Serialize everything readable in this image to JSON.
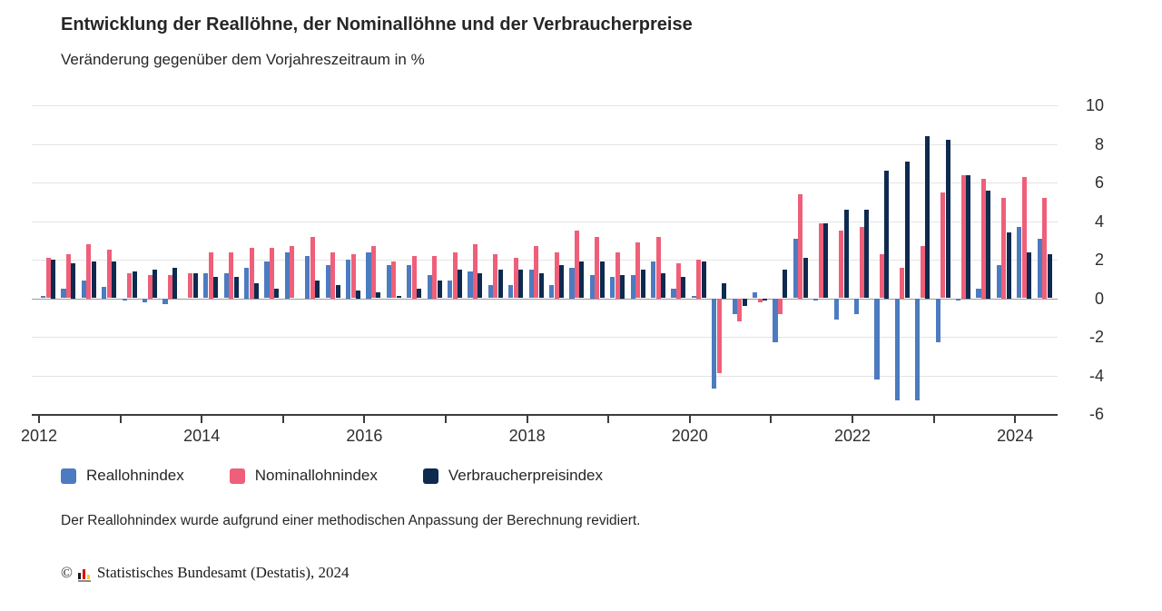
{
  "header": {
    "title": "Entwicklung der Reallöhne, der Nominallöhne und der Verbraucherpreise",
    "subtitle": "Veränderung gegenüber dem Vorjahreszeitraum in %"
  },
  "chart_data": {
    "type": "bar",
    "quarters": [
      "2012-Q1",
      "2012-Q2",
      "2012-Q3",
      "2012-Q4",
      "2013-Q1",
      "2013-Q2",
      "2013-Q3",
      "2013-Q4",
      "2014-Q1",
      "2014-Q2",
      "2014-Q3",
      "2014-Q4",
      "2015-Q1",
      "2015-Q2",
      "2015-Q3",
      "2015-Q4",
      "2016-Q1",
      "2016-Q2",
      "2016-Q3",
      "2016-Q4",
      "2017-Q1",
      "2017-Q2",
      "2017-Q3",
      "2017-Q4",
      "2018-Q1",
      "2018-Q2",
      "2018-Q3",
      "2018-Q4",
      "2019-Q1",
      "2019-Q2",
      "2019-Q3",
      "2019-Q4",
      "2020-Q1",
      "2020-Q2",
      "2020-Q3",
      "2020-Q4",
      "2021-Q1",
      "2021-Q2",
      "2021-Q3",
      "2021-Q4",
      "2022-Q1",
      "2022-Q2",
      "2022-Q3",
      "2022-Q4",
      "2023-Q1",
      "2023-Q2",
      "2023-Q3",
      "2023-Q4",
      "2024-Q1",
      "2024-Q2"
    ],
    "series": [
      {
        "name": "Reallohnindex",
        "color": "#4C7BC0",
        "values": [
          0.1,
          0.5,
          0.9,
          0.6,
          -0.1,
          -0.2,
          -0.3,
          0.0,
          1.3,
          1.3,
          1.6,
          1.9,
          2.4,
          2.2,
          1.7,
          2.0,
          2.4,
          1.7,
          1.7,
          1.2,
          0.9,
          1.4,
          0.7,
          0.7,
          1.5,
          0.7,
          1.6,
          1.2,
          1.1,
          1.2,
          1.9,
          0.5,
          0.1,
          -4.7,
          -0.8,
          0.3,
          -2.3,
          3.1,
          -0.1,
          -1.1,
          -0.8,
          -4.2,
          -5.3,
          -5.3,
          -2.3,
          -0.1,
          0.5,
          1.7,
          3.7,
          3.1
        ]
      },
      {
        "name": "Nominallohnindex",
        "color": "#EF5F79",
        "values": [
          2.1,
          2.3,
          2.8,
          2.5,
          1.3,
          1.2,
          1.2,
          1.3,
          2.4,
          2.4,
          2.6,
          2.6,
          2.7,
          3.2,
          2.4,
          2.3,
          2.7,
          1.9,
          2.2,
          2.2,
          2.4,
          2.8,
          2.3,
          2.1,
          2.7,
          2.4,
          3.5,
          3.2,
          2.4,
          2.9,
          3.2,
          1.8,
          2.0,
          -3.9,
          -1.2,
          -0.2,
          -0.8,
          5.4,
          3.9,
          3.5,
          3.7,
          2.3,
          1.6,
          2.7,
          5.5,
          6.4,
          6.2,
          5.2,
          6.3,
          5.2
        ]
      },
      {
        "name": "Verbraucherpreisindex",
        "color": "#0E2A4F",
        "values": [
          2.0,
          1.8,
          1.9,
          1.9,
          1.4,
          1.5,
          1.6,
          1.3,
          1.1,
          1.1,
          0.8,
          0.5,
          0.0,
          0.9,
          0.7,
          0.4,
          0.3,
          0.1,
          0.5,
          0.9,
          1.5,
          1.3,
          1.5,
          1.5,
          1.3,
          1.7,
          1.9,
          1.9,
          1.2,
          1.5,
          1.3,
          1.1,
          1.9,
          0.8,
          -0.4,
          -0.1,
          1.5,
          2.1,
          3.9,
          4.6,
          4.6,
          6.6,
          7.1,
          8.4,
          8.2,
          6.4,
          5.6,
          3.4,
          2.4,
          2.3
        ]
      }
    ],
    "ylim": [
      -6,
      10
    ],
    "y_ticks": [
      10,
      8,
      6,
      4,
      2,
      0,
      -2,
      -4,
      -6
    ],
    "x_tick_years": [
      2012,
      2013,
      2014,
      2015,
      2016,
      2017,
      2018,
      2019,
      2020,
      2021,
      2022,
      2023,
      2024
    ],
    "x_labeled_years": [
      2012,
      2014,
      2016,
      2018,
      2020,
      2022,
      2024
    ],
    "grid": "horizontal",
    "legend_position": "bottom"
  },
  "footnote": "Der Reallohnindex wurde aufgrund einer methodischen Anpassung der Berechnung revidiert.",
  "copyright": {
    "symbol": "©",
    "text": "Statistisches Bundesamt (Destatis), 2024",
    "logo_bar_colors": [
      "#1a1a1a",
      "#dd0000",
      "#ffce00"
    ]
  }
}
